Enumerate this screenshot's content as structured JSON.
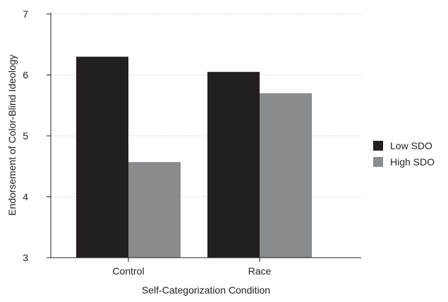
{
  "chart_data": {
    "type": "bar",
    "categories": [
      "Control",
      "Race"
    ],
    "series": [
      {
        "name": "Low SDO",
        "values": [
          6.3,
          6.05
        ],
        "color": "#231f20"
      },
      {
        "name": "High SDO",
        "values": [
          4.57,
          5.7
        ],
        "color": "#8a8b8d"
      }
    ],
    "xlabel": "Self-Categorization Condition",
    "ylabel": "Endorsement of Color-Blind Ideology",
    "ylim": [
      3,
      7
    ],
    "yticks": [
      3,
      4,
      5,
      6,
      7
    ],
    "grid": true,
    "legend_position": "right"
  }
}
